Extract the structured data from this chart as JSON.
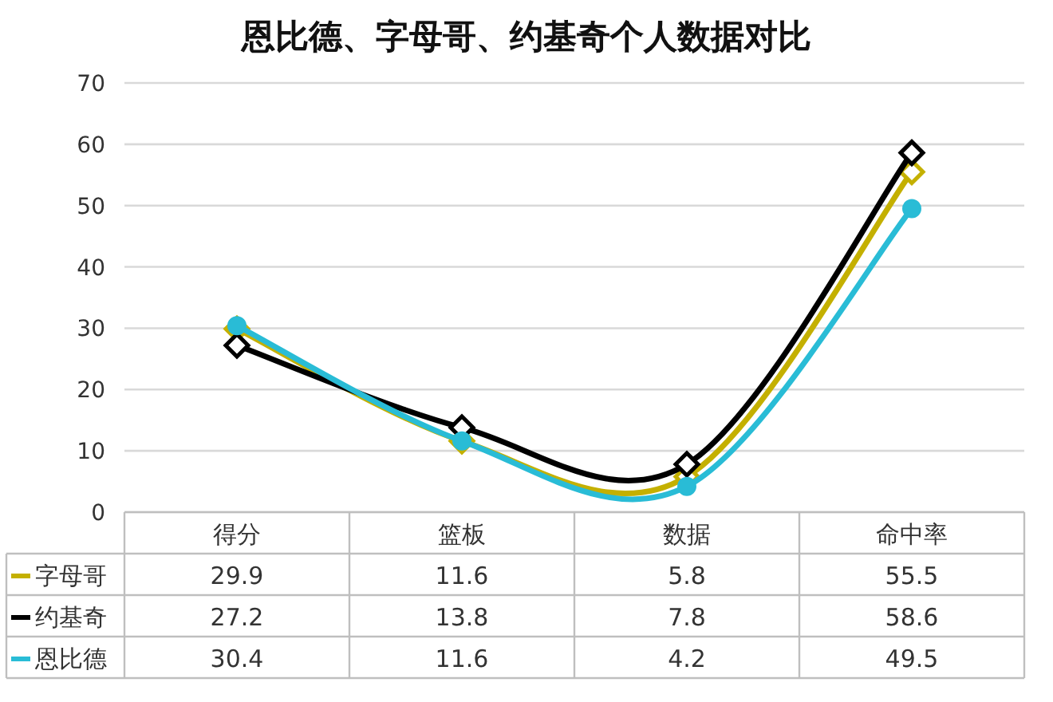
{
  "chart_data": {
    "type": "line",
    "title": "恩比德、字母哥、约基奇个人数据对比",
    "categories": [
      "得分",
      "篮板",
      "数据",
      "命中率"
    ],
    "series": [
      {
        "name": "字母哥",
        "color": "#c4b000",
        "marker": "diamond",
        "values": [
          29.9,
          11.6,
          5.8,
          55.5
        ]
      },
      {
        "name": "约基奇",
        "color": "#000000",
        "marker": "diamond",
        "values": [
          27.2,
          13.8,
          7.8,
          58.6
        ]
      },
      {
        "name": "恩比德",
        "color": "#29bcd6",
        "marker": "circle",
        "values": [
          30.4,
          11.6,
          4.2,
          49.5
        ]
      }
    ],
    "ylim": [
      0,
      70
    ],
    "yticks": [
      0,
      10,
      20,
      30,
      40,
      50,
      60,
      70
    ],
    "grid": "y",
    "data_labels": true,
    "legend": "bottom left"
  }
}
